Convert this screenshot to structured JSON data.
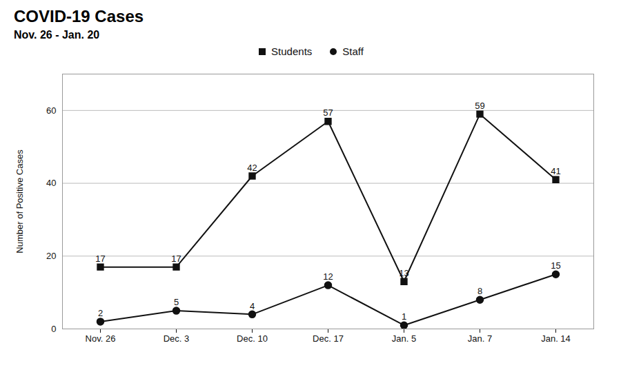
{
  "chart_data": {
    "type": "line",
    "title": "COVID-19 Cases",
    "subtitle": "Nov. 26 - Jan. 20",
    "ylabel": "Number of Positive Cases",
    "categories": [
      "Nov. 26",
      "Dec. 3",
      "Dec. 10",
      "Dec. 17",
      "Jan. 5",
      "Jan. 7",
      "Jan. 14"
    ],
    "series": [
      {
        "name": "Students",
        "color": "#111111",
        "marker": "square",
        "values": [
          17,
          17,
          42,
          57,
          13,
          59,
          41
        ]
      },
      {
        "name": "Staff",
        "color": "#111111",
        "marker": "circle",
        "values": [
          2,
          5,
          4,
          12,
          1,
          8,
          15
        ]
      }
    ],
    "ylim": [
      0,
      70
    ],
    "yticks": [
      0,
      20,
      40,
      60
    ],
    "grid": true,
    "legend": "top",
    "data_labels": true
  }
}
